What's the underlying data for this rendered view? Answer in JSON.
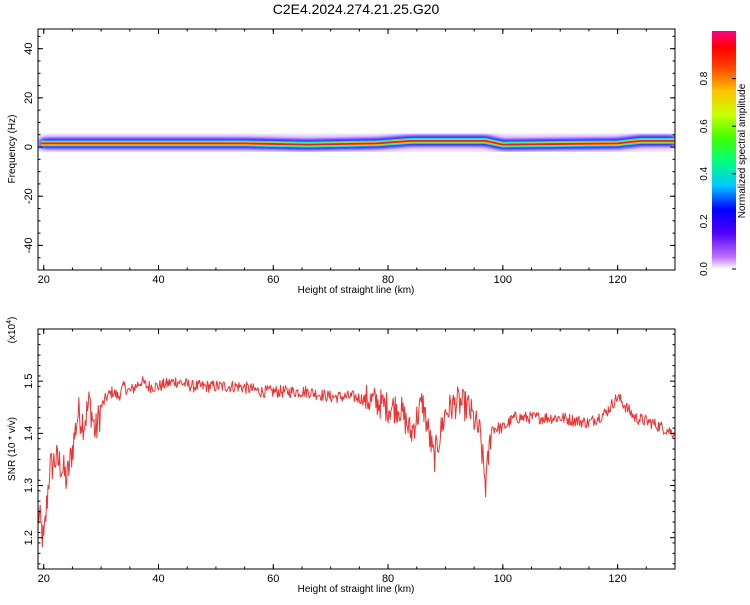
{
  "title": "C2E4.2024.274.21.25.G20",
  "chart_data": [
    {
      "type": "heatmap",
      "title": "C2E4.2024.274.21.25.G20",
      "xlabel": "Height of straight line (km)",
      "ylabel": "Frequency (Hz)",
      "xlim": [
        19,
        130
      ],
      "ylim": [
        -50,
        48
      ],
      "x_ticks": [
        20,
        40,
        60,
        80,
        100,
        120
      ],
      "y_ticks": [
        -40,
        -20,
        0,
        20,
        40
      ],
      "colorbar": {
        "label": "Normalized spectral amplitude",
        "range": [
          0,
          1
        ],
        "ticks": [
          0.0,
          0.2,
          0.4,
          0.6,
          0.8
        ],
        "colors": [
          "#ffffff",
          "#c070ff",
          "#5000ff",
          "#0000ff",
          "#00c8ff",
          "#00ff80",
          "#40ff00",
          "#c8ff00",
          "#ffc000",
          "#ff4000",
          "#ff0000",
          "#ff0080"
        ]
      },
      "band_center_hz": [
        {
          "x": 19.5,
          "y": 1.5
        },
        {
          "x": 30,
          "y": 1.5
        },
        {
          "x": 55,
          "y": 1.5
        },
        {
          "x": 66,
          "y": 1.0
        },
        {
          "x": 78,
          "y": 1.5
        },
        {
          "x": 84,
          "y": 2.5
        },
        {
          "x": 97,
          "y": 2.5
        },
        {
          "x": 100,
          "y": 1.0
        },
        {
          "x": 120,
          "y": 1.5
        },
        {
          "x": 124,
          "y": 2.5
        },
        {
          "x": 130,
          "y": 2.5
        }
      ]
    },
    {
      "type": "line",
      "xlabel": "Height of straight line (km)",
      "ylabel": "SNR (10 * v/v)",
      "y_multiplier": "(x10",
      "y_multiplier_exp": "4",
      "y_multiplier_close": ")",
      "xlim": [
        19,
        130
      ],
      "ylim": [
        1.14,
        1.6
      ],
      "x_ticks": [
        20,
        40,
        60,
        80,
        100,
        120
      ],
      "y_ticks": [
        1.2,
        1.3,
        1.4,
        1.5
      ],
      "series": [
        {
          "color": "#ee3333",
          "x": [
            19,
            20,
            21,
            22,
            23,
            24,
            25,
            26,
            27,
            28,
            29,
            30,
            31,
            32,
            33,
            34,
            35,
            36,
            37,
            38,
            40,
            43,
            46,
            50,
            54,
            58,
            62,
            66,
            70,
            74,
            78,
            80,
            82,
            84,
            86,
            88,
            90,
            92,
            94,
            96,
            97,
            98,
            100,
            102,
            105,
            110,
            115,
            118,
            120,
            123,
            126,
            130
          ],
          "y": [
            1.25,
            1.19,
            1.33,
            1.35,
            1.34,
            1.31,
            1.37,
            1.44,
            1.42,
            1.46,
            1.4,
            1.45,
            1.47,
            1.48,
            1.47,
            1.49,
            1.48,
            1.49,
            1.5,
            1.49,
            1.49,
            1.5,
            1.49,
            1.49,
            1.49,
            1.48,
            1.48,
            1.48,
            1.47,
            1.47,
            1.46,
            1.45,
            1.45,
            1.4,
            1.46,
            1.35,
            1.44,
            1.46,
            1.45,
            1.4,
            1.3,
            1.41,
            1.41,
            1.43,
            1.43,
            1.43,
            1.42,
            1.44,
            1.47,
            1.43,
            1.42,
            1.4
          ]
        }
      ]
    }
  ]
}
